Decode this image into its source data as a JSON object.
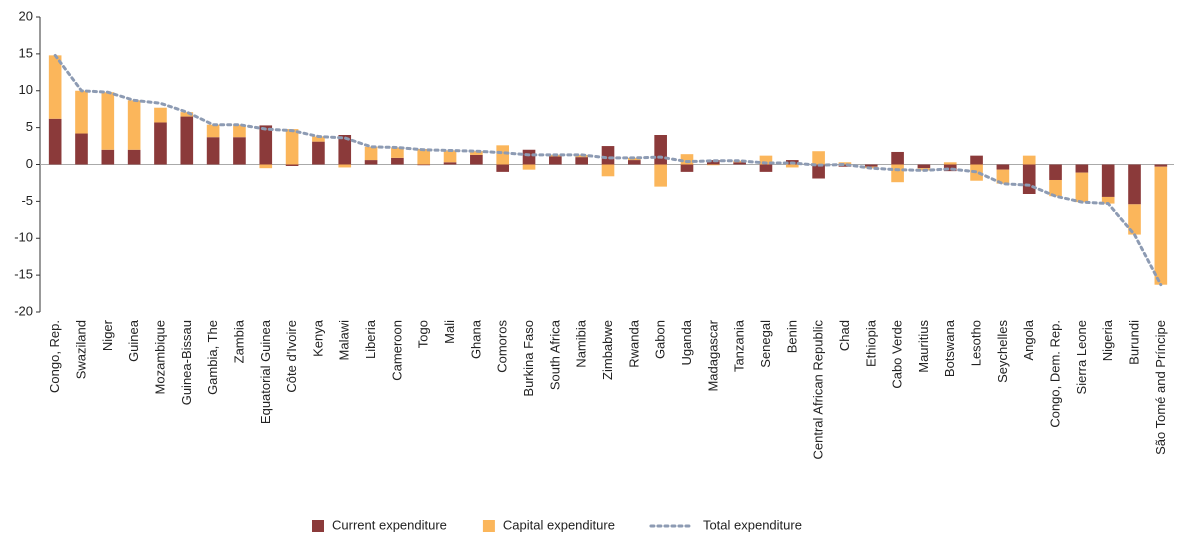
{
  "chart_data": {
    "type": "stacked_bar_line",
    "categories": [
      "Congo, Rep.",
      "Swaziland",
      "Niger",
      "Guinea",
      "Mozambique",
      "Guinea-Bissau",
      "Gambia, The",
      "Zambia",
      "Equatorial Guinea",
      "Côte d'Ivoire",
      "Kenya",
      "Malawi",
      "Liberia",
      "Cameroon",
      "Togo",
      "Mali",
      "Ghana",
      "Comoros",
      "Burkina Faso",
      "South Africa",
      "Namibia",
      "Zimbabwe",
      "Rwanda",
      "Gabon",
      "Uganda",
      "Madagascar",
      "Tanzania",
      "Senegal",
      "Benin",
      "Central African Republic",
      "Chad",
      "Ethiopia",
      "Cabo Verde",
      "Mauritius",
      "Botswana",
      "Lesotho",
      "Seychelles",
      "Angola",
      "Congo, Dem. Rep.",
      "Sierra Leone",
      "Nigeria",
      "Burundi",
      "São Tomé and Príncipe"
    ],
    "series": [
      {
        "name": "Current expenditure",
        "color": "#8b3a3a",
        "values": [
          6.2,
          4.2,
          2.0,
          2.0,
          5.7,
          6.5,
          3.7,
          3.7,
          5.3,
          -0.2,
          3.1,
          4.0,
          0.6,
          0.9,
          -0.1,
          0.3,
          1.3,
          -1.0,
          2.0,
          1.1,
          1.0,
          2.5,
          0.6,
          4.0,
          -1.0,
          0.6,
          0.3,
          -1.0,
          0.6,
          -1.9,
          -0.3,
          -0.3,
          1.7,
          -0.5,
          -0.9,
          1.2,
          -0.7,
          -4.0,
          -2.1,
          -1.1,
          -4.4,
          -5.4,
          -0.3
        ]
      },
      {
        "name": "Capital expenditure",
        "color": "#fbb65b",
        "values": [
          8.6,
          5.8,
          7.8,
          6.7,
          2.0,
          0.6,
          1.7,
          1.7,
          -0.5,
          4.8,
          0.7,
          -0.4,
          1.8,
          1.4,
          2.1,
          1.6,
          0.5,
          2.6,
          -0.7,
          0.2,
          0.3,
          -1.6,
          0.3,
          -3.0,
          1.4,
          -0.1,
          0.2,
          1.2,
          -0.4,
          1.8,
          0.3,
          -0.2,
          -2.4,
          -0.3,
          0.3,
          -2.2,
          -1.9,
          1.2,
          -2.2,
          -4.0,
          -0.9,
          -4.1,
          -16.0
        ]
      },
      {
        "name": "Total expenditure",
        "color": "#8d9bb3",
        "type": "line",
        "values": [
          14.8,
          10.0,
          9.8,
          8.7,
          8.3,
          7.1,
          5.4,
          5.4,
          4.8,
          4.6,
          3.8,
          3.6,
          2.4,
          2.3,
          2.0,
          1.9,
          1.8,
          1.6,
          1.3,
          1.3,
          1.3,
          0.9,
          0.9,
          1.0,
          0.4,
          0.5,
          0.5,
          0.2,
          0.2,
          -0.1,
          0.0,
          -0.5,
          -0.7,
          -0.8,
          -0.6,
          -1.0,
          -2.6,
          -2.8,
          -4.3,
          -5.1,
          -5.3,
          -9.5,
          -16.3
        ]
      }
    ],
    "ylim": [
      -20,
      20
    ],
    "yticks": [
      -20,
      -15,
      -10,
      -5,
      0,
      5,
      10,
      15,
      20
    ]
  }
}
